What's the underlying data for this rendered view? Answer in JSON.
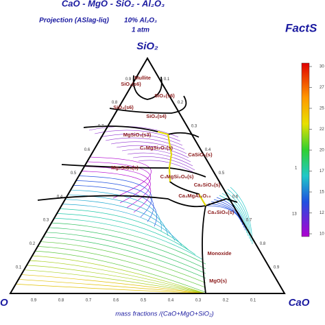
{
  "title": "CaO - MgO - SiO₂ - Al₂O₃",
  "subtitle": "Projection (ASlag-liq)",
  "composition": "10% Al₂O₃",
  "pressure": "1 atm",
  "logo": "FactS",
  "apex_labels": {
    "top": "SiO₂",
    "left": "O",
    "right": "CaO"
  },
  "axis_title": "mass fractions /(CaO+MgO+SiO₂)",
  "bottom_ticks": [
    "0.9",
    "0.8",
    "0.7",
    "0.6",
    "0.5",
    "0.4",
    "0.3",
    "0.2",
    "0.1"
  ],
  "left_ticks": [
    "0.1",
    "0.2",
    "0.3",
    "0.4",
    "0.5",
    "0.6",
    "0.7",
    "0.8",
    "0.9"
  ],
  "right_ticks": [
    "0.9",
    "0.8",
    "0.7",
    "0.6",
    "0.5",
    "0.4",
    "0.3",
    "0.2",
    "0.1"
  ],
  "phase_labels": [
    "Mullite",
    "SiO₂(s6)",
    "SiO₂(s6)",
    "SiO₂(s6)",
    "SiO₂(s4)",
    "MgSiO₃(s3)",
    "C₂MgSi₂O₇(s)",
    "CaSiO₃(s)",
    "Mg₂SiO₄(s)",
    "C₃MgSi₂O₈(s)",
    "Ca₂SiO₄(s)",
    "Ca₃MgAl₄O₁₀",
    "Ca₃SiO₅(s)",
    "Monoxide",
    "MgO(s)"
  ],
  "colorbar_labels": [
    "30",
    "27",
    "25",
    "22",
    "20",
    "17",
    "15",
    "12",
    "10"
  ],
  "side_labels": [
    "1",
    "13"
  ]
}
